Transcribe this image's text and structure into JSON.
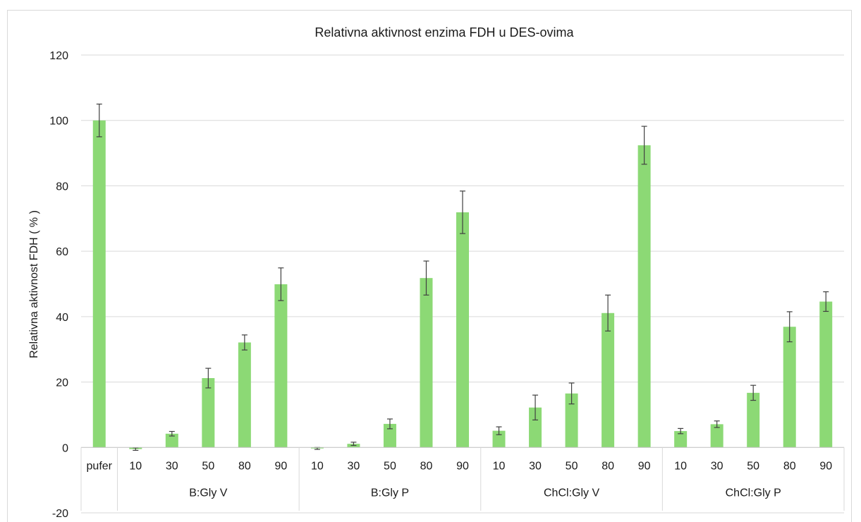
{
  "chart_data": {
    "type": "bar",
    "title": "Relativna aktivnost enzima FDH u DES-ovima",
    "ylabel": "Relativna aktivnost FDH ( % )",
    "xlabel": "",
    "ylim": [
      -20,
      120
    ],
    "ytick_step": 20,
    "grid": true,
    "legend": "none",
    "bar_color": "#8cd975",
    "error_color": "#404040",
    "groups": [
      {
        "label": "",
        "categories": [
          "pufer"
        ],
        "values": [
          100
        ],
        "errors": [
          5
        ]
      },
      {
        "label": "B:Gly V",
        "categories": [
          "10",
          "30",
          "50",
          "80",
          "90"
        ],
        "values": [
          -0.5,
          4.2,
          21.2,
          32.1,
          49.9
        ],
        "errors": [
          0.4,
          0.7,
          3,
          2.3,
          5
        ]
      },
      {
        "label": "B:Gly  P",
        "categories": [
          "10",
          "30",
          "50",
          "80",
          "90"
        ],
        "values": [
          -0.3,
          1.1,
          7.2,
          51.8,
          71.9
        ],
        "errors": [
          0.3,
          0.5,
          1.5,
          5.2,
          6.5
        ]
      },
      {
        "label": "ChCl:Gly V",
        "categories": [
          "10",
          "30",
          "50",
          "80",
          "90"
        ],
        "values": [
          5.1,
          12.2,
          16.5,
          41.1,
          92.4
        ],
        "errors": [
          1.2,
          3.8,
          3.2,
          5.5,
          5.8
        ]
      },
      {
        "label": "ChCl:Gly P",
        "categories": [
          "10",
          "30",
          "50",
          "80",
          "90"
        ],
        "values": [
          5.0,
          7.1,
          16.7,
          36.9,
          44.6
        ],
        "errors": [
          0.8,
          1,
          2.3,
          4.6,
          3
        ]
      }
    ]
  }
}
